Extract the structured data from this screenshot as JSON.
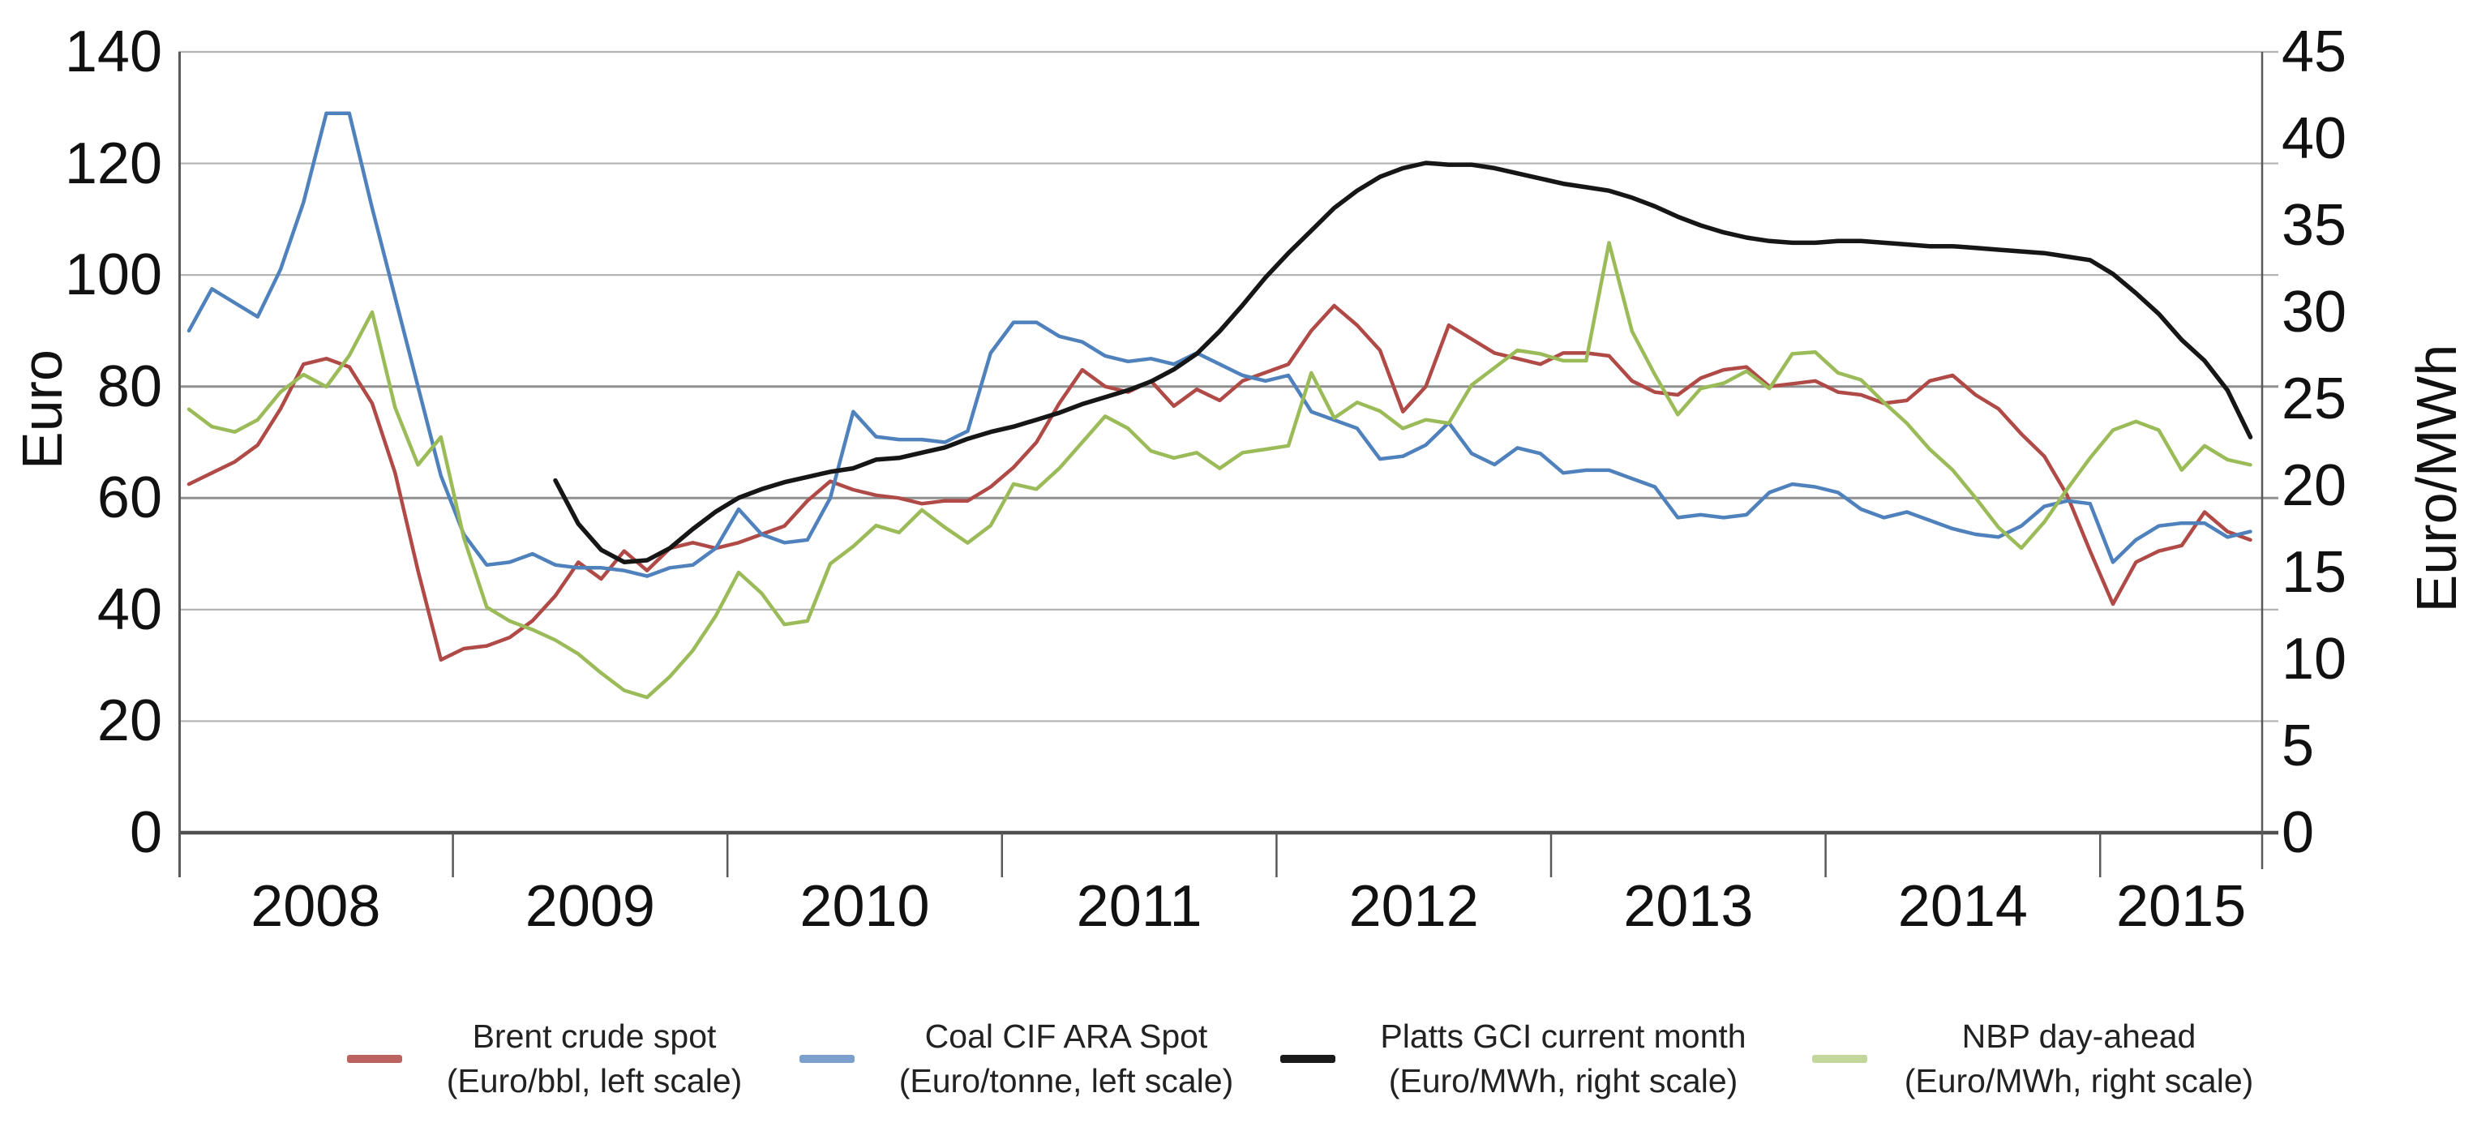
{
  "chart_data": {
    "type": "line",
    "title": "",
    "frequency": "monthly",
    "x_start": "2008-01",
    "x_end": "2015-07",
    "x_year_labels": [
      "2008",
      "2009",
      "2010",
      "2011",
      "2012",
      "2013",
      "2014",
      "2015"
    ],
    "left_axis": {
      "label": "Euro",
      "ticks": [
        140,
        120,
        100,
        80,
        60,
        40,
        20,
        0
      ],
      "range": [
        0,
        140
      ]
    },
    "right_axis": {
      "label": "Euro/MWh",
      "ticks": [
        45,
        40,
        35,
        30,
        25,
        20,
        15,
        10,
        5,
        0
      ],
      "range": [
        0,
        45
      ]
    },
    "grid": "horizontal-on",
    "legend_position": "bottom",
    "series": [
      {
        "name": "Brent crude spot",
        "unit_note": "(Euro/bbl, left scale)",
        "scale": "left",
        "color": "#b04a47",
        "legend_color": "#bb6360",
        "values": [
          62.5,
          64.5,
          66.5,
          69.5,
          76,
          84,
          85,
          83.5,
          77,
          64.5,
          47,
          31,
          33,
          33.5,
          35,
          38,
          42.5,
          48.5,
          45.5,
          50.5,
          47,
          51,
          52,
          51,
          52,
          53.5,
          55,
          59.5,
          63,
          61.5,
          60.5,
          60,
          59,
          59.5,
          59.5,
          62,
          65.5,
          70,
          77,
          83,
          80,
          79,
          81,
          76.5,
          79.5,
          77.5,
          81,
          82.5,
          84,
          90,
          94.5,
          91,
          86.5,
          75.5,
          80,
          91,
          88.5,
          86,
          85,
          84,
          86,
          86,
          85.5,
          81,
          79,
          78.5,
          81.5,
          83,
          83.5,
          80,
          80.5,
          81,
          79,
          78.5,
          77,
          77.5,
          81,
          82,
          78.5,
          76,
          71.5,
          67.5,
          60.5,
          50.5,
          41,
          48.5,
          50.5,
          51.5,
          57.5,
          54,
          52.5
        ]
      },
      {
        "name": "Coal CIF ARA Spot",
        "unit_note": "(Euro/tonne, left scale)",
        "scale": "left",
        "color": "#4f81bd",
        "legend_color": "#7ba0cd",
        "values": [
          90,
          97.5,
          95,
          92.5,
          101,
          113,
          129,
          129,
          112,
          96,
          80,
          64,
          53.5,
          48,
          48.5,
          50,
          48,
          47.5,
          47.5,
          47,
          46,
          47.5,
          48,
          51,
          58,
          53.5,
          52,
          52.5,
          60,
          75.5,
          71,
          70.5,
          70.5,
          70,
          72,
          86,
          91.5,
          91.5,
          89,
          88,
          85.5,
          84.5,
          85,
          84,
          86,
          84,
          82,
          81,
          82,
          75.5,
          74,
          72.5,
          67,
          67.5,
          69.5,
          73.5,
          68,
          66,
          69,
          68,
          64.5,
          65,
          65,
          63.5,
          62,
          56.5,
          57,
          56.5,
          57,
          61,
          62.5,
          62,
          61,
          58,
          56.5,
          57.5,
          56,
          54.5,
          53.5,
          53,
          55,
          58.5,
          59.5,
          59,
          48.5,
          52.5,
          55,
          55.5,
          55.5,
          53,
          54
        ]
      },
      {
        "name": "Platts GCI current month",
        "unit_note": "(Euro/MWh, right scale)",
        "scale": "right",
        "color": "#161616",
        "legend_color": "#1a1a1a",
        "values": [
          null,
          null,
          null,
          null,
          null,
          null,
          null,
          null,
          null,
          null,
          null,
          null,
          null,
          null,
          null,
          null,
          20.3,
          17.8,
          16.3,
          15.6,
          15.7,
          16.4,
          17.5,
          18.5,
          19.3,
          19.8,
          20.2,
          20.5,
          20.8,
          21,
          21.5,
          21.6,
          21.9,
          22.2,
          22.7,
          23.1,
          23.4,
          23.8,
          24.2,
          24.7,
          25.1,
          25.5,
          26,
          26.7,
          27.6,
          28.9,
          30.4,
          32,
          33.4,
          34.7,
          36,
          37,
          37.8,
          38.3,
          38.6,
          38.5,
          38.5,
          38.3,
          38,
          37.7,
          37.4,
          37.2,
          37,
          36.6,
          36.1,
          35.5,
          35,
          34.6,
          34.3,
          34.1,
          34,
          34,
          34.1,
          34.1,
          34,
          33.9,
          33.8,
          33.8,
          33.7,
          33.6,
          33.5,
          33.4,
          33.2,
          33,
          32.2,
          31.1,
          29.9,
          28.4,
          27.2,
          25.5,
          22.8
        ]
      },
      {
        "name": "NBP day-ahead",
        "unit_note": "(Euro/MWh, right scale)",
        "scale": "right",
        "color": "#9bbb59",
        "legend_color": "#c3d69b",
        "values": [
          24.4,
          23.4,
          23.1,
          23.8,
          25.4,
          26.4,
          25.7,
          27.5,
          30,
          24.5,
          21.2,
          22.8,
          17,
          13,
          12.2,
          11.7,
          11.1,
          10.3,
          9.2,
          8.2,
          7.8,
          9,
          10.5,
          12.5,
          15,
          13.8,
          12,
          12.2,
          15.5,
          16.5,
          17.7,
          17.3,
          18.6,
          17.6,
          16.7,
          17.7,
          20.1,
          19.8,
          21,
          22.5,
          24,
          23.3,
          22,
          21.6,
          21.9,
          21,
          21.9,
          22.1,
          22.3,
          26.5,
          23.9,
          24.8,
          24.3,
          23.3,
          23.8,
          23.6,
          25.8,
          26.8,
          27.8,
          27.6,
          27.2,
          27.2,
          34,
          28.9,
          26.4,
          24.1,
          25.6,
          25.9,
          26.6,
          25.6,
          27.6,
          27.7,
          26.5,
          26.1,
          24.8,
          23.6,
          22.1,
          20.9,
          19.3,
          17.6,
          16.4,
          17.9,
          19.8,
          21.6,
          23.2,
          23.7,
          23.2,
          20.9,
          22.3,
          21.5,
          21.2
        ]
      }
    ],
    "style": {
      "gridline_color": "#b3b3b3",
      "gridline_dark_color": "#8f8f8f",
      "axis_color": "#4f4f4f",
      "border_color": "#595959",
      "text_color": "#111111"
    }
  }
}
